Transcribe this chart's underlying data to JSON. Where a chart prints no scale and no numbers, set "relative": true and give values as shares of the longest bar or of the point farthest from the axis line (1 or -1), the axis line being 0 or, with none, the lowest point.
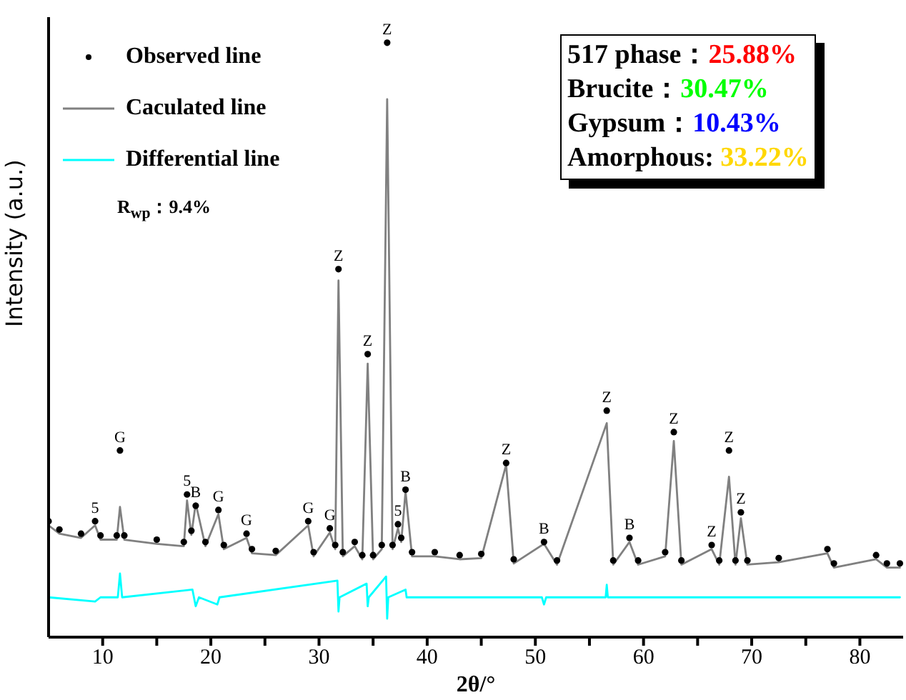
{
  "chart_data": {
    "type": "line",
    "relative": true,
    "xlabel": "2θ/°",
    "ylabel": "Intensity (a.u.)",
    "xlim": [
      5,
      84
    ],
    "xticks": [
      10,
      {
        "value": 15,
        "label": null
      },
      20,
      {
        "value": 25,
        "label": null
      },
      30,
      {
        "value": 35,
        "label": null
      },
      40,
      {
        "value": 45,
        "label": null
      },
      50,
      {
        "value": 55,
        "label": null
      },
      60,
      {
        "value": 65,
        "label": null
      },
      70,
      {
        "value": 75,
        "label": null
      },
      80
    ],
    "legend": "top left",
    "series": [
      {
        "name": "Observed line",
        "type": "scatter",
        "marker": "circle",
        "color": "#000000",
        "x": [
          5,
          6,
          8,
          9.3,
          9.8,
          11.3,
          11.6,
          12,
          15,
          17.5,
          17.8,
          18.2,
          18.6,
          19.5,
          20.7,
          21.2,
          23.3,
          23.8,
          26,
          29,
          29.5,
          31,
          31.5,
          31.8,
          32.2,
          33.3,
          34,
          34.5,
          35,
          35.8,
          36.3,
          36.8,
          37.3,
          37.6,
          38,
          38.6,
          40.7,
          43,
          45,
          47.3,
          48,
          50.8,
          52,
          56.6,
          57.2,
          58.7,
          59.5,
          62,
          62.8,
          63.5,
          66.3,
          67,
          67.9,
          68.5,
          69,
          69.6,
          72.5,
          77,
          77.6,
          81.5,
          82.5,
          83.7
        ],
        "values": [
          0.195,
          0.181,
          0.174,
          0.195,
          0.171,
          0.171,
          0.314,
          0.171,
          0.164,
          0.16,
          0.24,
          0.179,
          0.221,
          0.16,
          0.214,
          0.155,
          0.174,
          0.148,
          0.145,
          0.195,
          0.143,
          0.183,
          0.155,
          0.619,
          0.143,
          0.16,
          0.138,
          0.476,
          0.138,
          0.155,
          1,
          0.155,
          0.19,
          0.167,
          0.248,
          0.143,
          0.143,
          0.138,
          0.14,
          0.293,
          0.131,
          0.16,
          0.129,
          0.381,
          0.129,
          0.167,
          0.129,
          0.143,
          0.345,
          0.129,
          0.155,
          0.129,
          0.314,
          0.129,
          0.21,
          0.129,
          0.133,
          0.148,
          0.124,
          0.138,
          0.124,
          0.124
        ]
      },
      {
        "name": "Caculated line",
        "color": "#808080",
        "x": [
          5,
          6,
          8,
          9.3,
          9.8,
          11.3,
          11.6,
          12,
          15,
          17.5,
          17.8,
          18.2,
          18.6,
          19.5,
          20.7,
          21.2,
          23.3,
          23.8,
          26,
          29,
          29.5,
          31,
          31.5,
          31.8,
          32.2,
          33.3,
          34,
          34.5,
          35,
          35.8,
          36.3,
          36.8,
          37.3,
          37.6,
          38,
          38.6,
          40.7,
          43,
          45,
          47.3,
          48,
          50.8,
          52,
          56.6,
          57.2,
          58.7,
          59.5,
          62,
          62.8,
          63.5,
          66.3,
          67,
          67.9,
          68.5,
          69,
          69.6,
          72.5,
          77,
          77.6,
          81.5,
          82.5,
          83.7
        ],
        "values": [
          0.188,
          0.174,
          0.167,
          0.188,
          0.164,
          0.164,
          0.219,
          0.164,
          0.157,
          0.153,
          0.23,
          0.172,
          0.225,
          0.153,
          0.207,
          0.148,
          0.167,
          0.141,
          0.138,
          0.188,
          0.136,
          0.176,
          0.148,
          0.6,
          0.136,
          0.153,
          0.131,
          0.46,
          0.131,
          0.148,
          0.905,
          0.148,
          0.183,
          0.16,
          0.245,
          0.136,
          0.136,
          0.131,
          0.133,
          0.29,
          0.124,
          0.157,
          0.122,
          0.36,
          0.122,
          0.16,
          0.122,
          0.136,
          0.33,
          0.122,
          0.148,
          0.122,
          0.27,
          0.122,
          0.2,
          0.122,
          0.126,
          0.141,
          0.117,
          0.131,
          0.117,
          0.117
        ]
      },
      {
        "name": "Differential line",
        "color": "#00ffff",
        "x": [
          5,
          9.3,
          9.8,
          11.4,
          11.6,
          11.8,
          18.3,
          18.6,
          18.9,
          20.6,
          20.8,
          31.7,
          31.8,
          31.9,
          34.4,
          34.5,
          34.6,
          36.2,
          36.3,
          36.4,
          38,
          38.1,
          50.6,
          50.8,
          51,
          56.5,
          56.6,
          56.7,
          83.7
        ],
        "values": [
          0.067,
          0.06,
          0.067,
          0.067,
          0.107,
          0.067,
          0.08,
          0.052,
          0.067,
          0.055,
          0.067,
          0.095,
          0.043,
          0.067,
          0.09,
          0.052,
          0.067,
          0.102,
          0.031,
          0.067,
          0.08,
          0.067,
          0.067,
          0.055,
          0.067,
          0.067,
          0.088,
          0.067,
          0.067
        ]
      }
    ],
    "annotations": [
      {
        "text": "5",
        "x": 9.3,
        "y": 0.195
      },
      {
        "text": "G",
        "x": 11.6,
        "y": 0.314
      },
      {
        "text": "5",
        "x": 17.8,
        "y": 0.24
      },
      {
        "text": "B",
        "x": 18.6,
        "y": 0.221
      },
      {
        "text": "G",
        "x": 20.7,
        "y": 0.214
      },
      {
        "text": "G",
        "x": 23.3,
        "y": 0.174
      },
      {
        "text": "G",
        "x": 29,
        "y": 0.195
      },
      {
        "text": "G",
        "x": 31,
        "y": 0.183
      },
      {
        "text": "Z",
        "x": 31.8,
        "y": 0.619
      },
      {
        "text": "Z",
        "x": 34.5,
        "y": 0.476
      },
      {
        "text": "Z",
        "x": 36.3,
        "y": 1
      },
      {
        "text": "5",
        "x": 37.3,
        "y": 0.19
      },
      {
        "text": "B",
        "x": 38,
        "y": 0.248
      },
      {
        "text": "Z",
        "x": 47.3,
        "y": 0.293
      },
      {
        "text": "B",
        "x": 50.8,
        "y": 0.16
      },
      {
        "text": "Z",
        "x": 56.6,
        "y": 0.381
      },
      {
        "text": "B",
        "x": 58.7,
        "y": 0.167
      },
      {
        "text": "Z",
        "x": 62.8,
        "y": 0.345
      },
      {
        "text": "Z",
        "x": 66.3,
        "y": 0.155
      },
      {
        "text": "Z",
        "x": 67.9,
        "y": 0.314
      },
      {
        "text": "Z",
        "x": 69,
        "y": 0.21
      },
      "R$_{wp}$：9.4%",
      "517 phase：25.88%",
      "Brucite：30.47%",
      "Gypsum：10.43%",
      "Amorphous: 33.22%"
    ]
  }
}
